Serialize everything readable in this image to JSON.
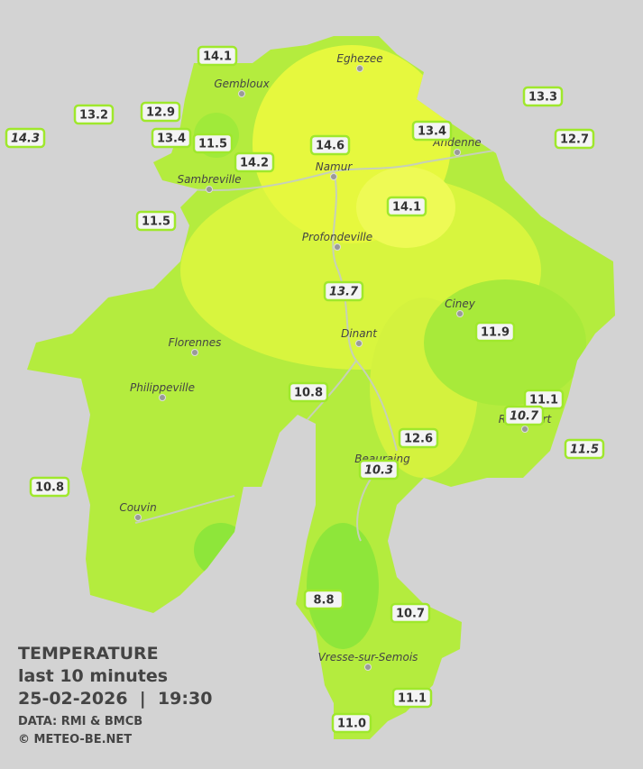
{
  "title": "TEMPERATURE",
  "subtitle": "last 10 minutes",
  "datetime": "25-02-2026  |  19:30",
  "source": "DATA: RMI & BMCB",
  "credit": "© METEO-BE.NET",
  "towns": [
    "Eghezee",
    "Gembloux",
    "Andenne",
    "Namur",
    "Sambreville",
    "Profondeville",
    "Ciney",
    "Dinant",
    "Florennes",
    "Philippeville",
    "Rochefort",
    "Beauraing",
    "Couvin",
    "Vresse-sur-Semois"
  ],
  "stations": [
    {
      "value": "14.1",
      "italic": false
    },
    {
      "value": "13.2",
      "italic": false
    },
    {
      "value": "14.3",
      "italic": true
    },
    {
      "value": "12.9",
      "italic": false
    },
    {
      "value": "13.4",
      "italic": false
    },
    {
      "value": "11.5",
      "italic": false
    },
    {
      "value": "14.2",
      "italic": false
    },
    {
      "value": "14.6",
      "italic": false
    },
    {
      "value": "13.4",
      "italic": false
    },
    {
      "value": "13.3",
      "italic": false
    },
    {
      "value": "12.7",
      "italic": false
    },
    {
      "value": "14.1",
      "italic": false
    },
    {
      "value": "11.5",
      "italic": false
    },
    {
      "value": "13.7",
      "italic": true
    },
    {
      "value": "11.9",
      "italic": false
    },
    {
      "value": "10.8",
      "italic": false
    },
    {
      "value": "11.1",
      "italic": false
    },
    {
      "value": "10.7",
      "italic": true
    },
    {
      "value": "12.6",
      "italic": false
    },
    {
      "value": "11.5",
      "italic": true
    },
    {
      "value": "10.3",
      "italic": true
    },
    {
      "value": "10.8",
      "italic": false
    },
    {
      "value": "8.8",
      "italic": false
    },
    {
      "value": "10.7",
      "italic": false
    },
    {
      "value": "11.1",
      "italic": false
    },
    {
      "value": "11.0",
      "italic": false
    }
  ]
}
